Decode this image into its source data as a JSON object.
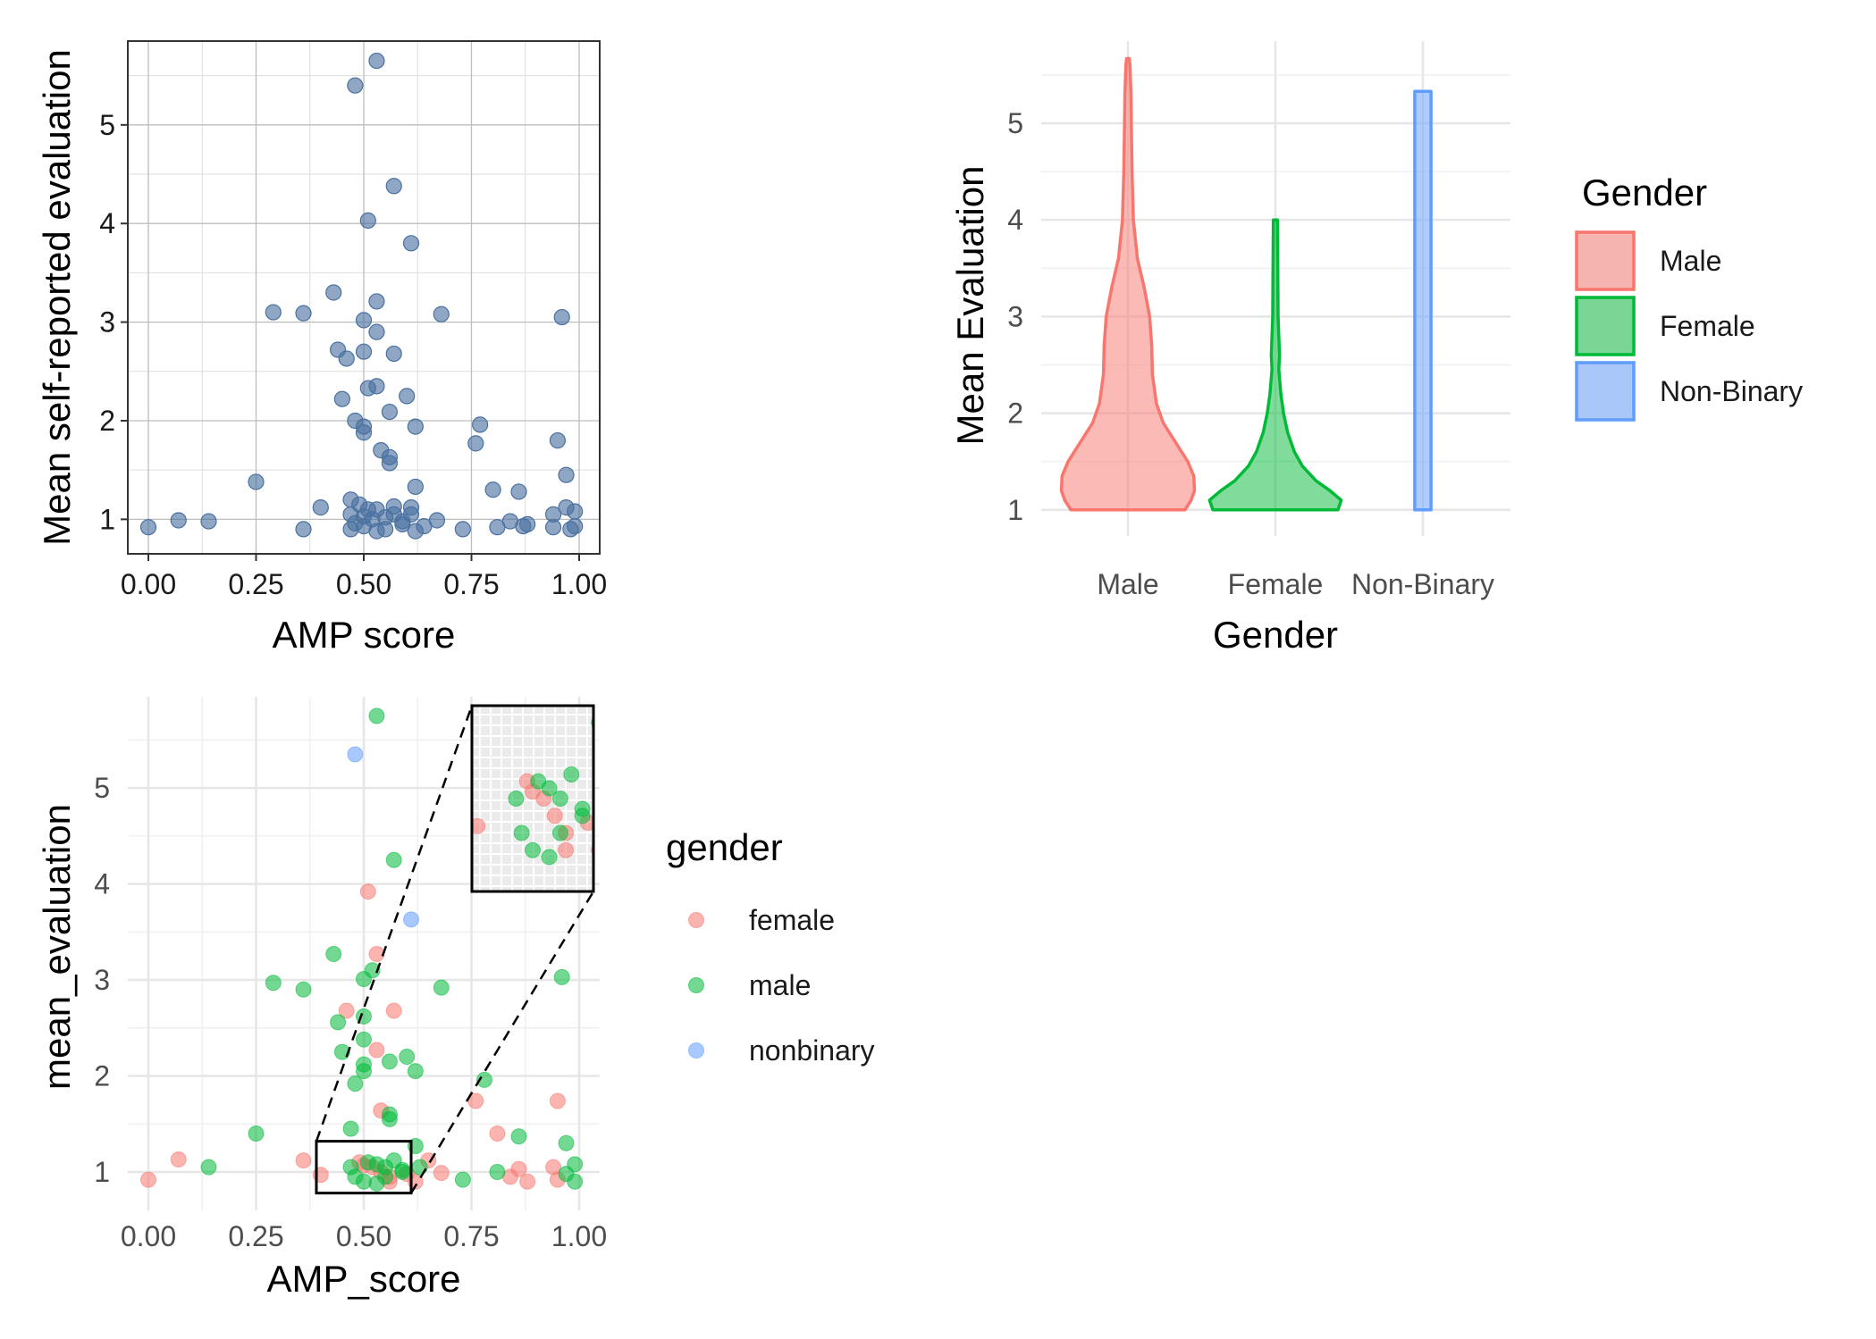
{
  "chart_data": [
    {
      "type": "scatter",
      "panel": "top-left",
      "xlabel": "AMP score",
      "ylabel": "Mean self-reported evaluation",
      "xlim": [
        0,
        1.0
      ],
      "ylim": [
        0.65,
        5.85
      ],
      "x_ticks": [
        "0.00",
        "0.25",
        "0.50",
        "0.75",
        "1.00"
      ],
      "y_ticks": [
        "1",
        "2",
        "3",
        "4",
        "5"
      ],
      "grid": true,
      "point_color": "#4a71a0",
      "points": [
        [
          0.53,
          5.65
        ],
        [
          0.48,
          5.4
        ],
        [
          0.57,
          4.38
        ],
        [
          0.51,
          4.03
        ],
        [
          0.61,
          3.8
        ],
        [
          0.43,
          3.3
        ],
        [
          0.53,
          3.21
        ],
        [
          0.29,
          3.1
        ],
        [
          0.36,
          3.09
        ],
        [
          0.68,
          3.08
        ],
        [
          0.96,
          3.05
        ],
        [
          0.5,
          3.02
        ],
        [
          0.53,
          2.9
        ],
        [
          0.44,
          2.72
        ],
        [
          0.46,
          2.63
        ],
        [
          0.5,
          2.7
        ],
        [
          0.57,
          2.68
        ],
        [
          0.51,
          2.33
        ],
        [
          0.53,
          2.35
        ],
        [
          0.45,
          2.22
        ],
        [
          0.6,
          2.25
        ],
        [
          0.56,
          2.09
        ],
        [
          0.48,
          2.0
        ],
        [
          0.5,
          1.94
        ],
        [
          0.5,
          1.88
        ],
        [
          0.62,
          1.94
        ],
        [
          0.77,
          1.96
        ],
        [
          0.95,
          1.8
        ],
        [
          0.76,
          1.77
        ],
        [
          0.54,
          1.7
        ],
        [
          0.56,
          1.63
        ],
        [
          0.56,
          1.57
        ],
        [
          0.97,
          1.45
        ],
        [
          0.25,
          1.38
        ],
        [
          0.62,
          1.33
        ],
        [
          0.8,
          1.3
        ],
        [
          0.86,
          1.28
        ],
        [
          0.47,
          1.2
        ],
        [
          0.49,
          1.15
        ],
        [
          0.4,
          1.12
        ],
        [
          0.51,
          1.1
        ],
        [
          0.53,
          1.1
        ],
        [
          0.61,
          1.12
        ],
        [
          0.57,
          1.13
        ],
        [
          0.97,
          1.12
        ],
        [
          0.99,
          1.08
        ],
        [
          0.94,
          1.05
        ],
        [
          0.47,
          1.05
        ],
        [
          0.5,
          1.03
        ],
        [
          0.52,
          1.0
        ],
        [
          0.55,
          1.02
        ],
        [
          0.57,
          1.05
        ],
        [
          0.59,
          0.98
        ],
        [
          0.61,
          1.05
        ],
        [
          0.67,
          0.99
        ],
        [
          0.84,
          0.98
        ],
        [
          0.88,
          0.95
        ],
        [
          0.0,
          0.92
        ],
        [
          0.07,
          0.99
        ],
        [
          0.14,
          0.98
        ],
        [
          0.36,
          0.9
        ],
        [
          0.47,
          0.9
        ],
        [
          0.48,
          0.96
        ],
        [
          0.5,
          0.93
        ],
        [
          0.53,
          0.88
        ],
        [
          0.55,
          0.9
        ],
        [
          0.59,
          0.95
        ],
        [
          0.62,
          0.88
        ],
        [
          0.64,
          0.93
        ],
        [
          0.73,
          0.9
        ],
        [
          0.81,
          0.92
        ],
        [
          0.87,
          0.93
        ],
        [
          0.94,
          0.92
        ],
        [
          0.98,
          0.9
        ],
        [
          0.99,
          0.93
        ]
      ]
    },
    {
      "type": "violin",
      "panel": "top-right",
      "xlabel": "Gender",
      "ylabel": "Mean Evaluation",
      "ylim": [
        0.73,
        5.85
      ],
      "y_ticks": [
        "1",
        "2",
        "3",
        "4",
        "5"
      ],
      "categories": [
        "Male",
        "Female",
        "Non-Binary"
      ],
      "legend": {
        "title": "Gender",
        "position": "right",
        "items": [
          "Male",
          "Female",
          "Non-Binary"
        ]
      },
      "colors": {
        "Male": "#f8766d",
        "Female": "#00ba38",
        "Non-Binary": "#619cff"
      },
      "violins": [
        {
          "name": "Male",
          "ymin": 1.0,
          "ymax": 5.67,
          "profile": [
            [
              1.0,
              0.84
            ],
            [
              1.1,
              0.93
            ],
            [
              1.2,
              0.98
            ],
            [
              1.35,
              0.97
            ],
            [
              1.5,
              0.88
            ],
            [
              1.7,
              0.7
            ],
            [
              1.9,
              0.52
            ],
            [
              2.1,
              0.42
            ],
            [
              2.4,
              0.36
            ],
            [
              2.7,
              0.35
            ],
            [
              3.0,
              0.32
            ],
            [
              3.3,
              0.24
            ],
            [
              3.6,
              0.14
            ],
            [
              4.0,
              0.08
            ],
            [
              4.5,
              0.06
            ],
            [
              5.0,
              0.05
            ],
            [
              5.3,
              0.045
            ],
            [
              5.6,
              0.03
            ],
            [
              5.67,
              0.02
            ]
          ]
        },
        {
          "name": "Female",
          "ymin": 1.0,
          "ymax": 4.0,
          "profile": [
            [
              1.0,
              0.92
            ],
            [
              1.1,
              0.97
            ],
            [
              1.2,
              0.8
            ],
            [
              1.3,
              0.6
            ],
            [
              1.45,
              0.4
            ],
            [
              1.6,
              0.28
            ],
            [
              1.8,
              0.18
            ],
            [
              2.0,
              0.12
            ],
            [
              2.2,
              0.08
            ],
            [
              2.45,
              0.05
            ],
            [
              2.6,
              0.06
            ],
            [
              2.8,
              0.05
            ],
            [
              3.0,
              0.04
            ],
            [
              3.5,
              0.035
            ],
            [
              4.0,
              0.03
            ]
          ]
        },
        {
          "name": "Non-Binary",
          "ymin": 1.0,
          "ymax": 5.33,
          "profile": [
            [
              1.0,
              0.12
            ],
            [
              5.33,
              0.12
            ]
          ]
        }
      ]
    },
    {
      "type": "scatter",
      "panel": "bottom-left",
      "xlabel": "AMP_score",
      "ylabel": "mean_evaluation",
      "xlim": [
        0,
        1.0
      ],
      "ylim": [
        0.6,
        5.95
      ],
      "x_ticks": [
        "0.00",
        "0.25",
        "0.50",
        "0.75",
        "1.00"
      ],
      "y_ticks": [
        "1",
        "2",
        "3",
        "4",
        "5"
      ],
      "legend": {
        "title": "gender",
        "position": "right",
        "items": [
          "female",
          "male",
          "nonbinary"
        ]
      },
      "colors": {
        "female": "#f8766d",
        "male": "#00ba38",
        "nonbinary": "#619cff"
      },
      "zoom_box": {
        "x": [
          0.39,
          0.61
        ],
        "y": [
          0.78,
          1.32
        ]
      },
      "series": [
        {
          "name": "female",
          "points": [
            [
              0.51,
              3.92
            ],
            [
              0.53,
              3.27
            ],
            [
              0.46,
              2.68
            ],
            [
              0.57,
              2.68
            ],
            [
              0.53,
              2.27
            ],
            [
              0.54,
              1.64
            ],
            [
              0.76,
              1.74
            ],
            [
              0.95,
              1.74
            ],
            [
              0.81,
              1.4
            ],
            [
              0.36,
              1.12
            ],
            [
              0.07,
              1.13
            ],
            [
              0.0,
              0.92
            ],
            [
              0.4,
              0.97
            ],
            [
              0.49,
              1.1
            ],
            [
              0.5,
              1.07
            ],
            [
              0.52,
              1.05
            ],
            [
              0.54,
              1.0
            ],
            [
              0.56,
              0.95
            ],
            [
              0.6,
              0.98
            ],
            [
              0.65,
              1.12
            ],
            [
              0.68,
              0.99
            ],
            [
              0.84,
              0.95
            ],
            [
              0.86,
              1.03
            ],
            [
              0.88,
              0.9
            ],
            [
              0.94,
              1.05
            ],
            [
              0.95,
              0.92
            ],
            [
              0.56,
              0.9
            ],
            [
              0.62,
              0.9
            ]
          ]
        },
        {
          "name": "male",
          "points": [
            [
              0.53,
              5.75
            ],
            [
              0.57,
              4.25
            ],
            [
              0.43,
              3.27
            ],
            [
              0.52,
              3.1
            ],
            [
              0.5,
              3.01
            ],
            [
              0.29,
              2.97
            ],
            [
              0.36,
              2.9
            ],
            [
              0.68,
              2.92
            ],
            [
              0.96,
              3.03
            ],
            [
              0.5,
              2.62
            ],
            [
              0.44,
              2.56
            ],
            [
              0.5,
              2.38
            ],
            [
              0.45,
              2.25
            ],
            [
              0.6,
              2.2
            ],
            [
              0.56,
              2.15
            ],
            [
              0.5,
              2.12
            ],
            [
              0.5,
              2.05
            ],
            [
              0.62,
              2.05
            ],
            [
              0.78,
              1.96
            ],
            [
              0.48,
              1.92
            ],
            [
              0.56,
              1.6
            ],
            [
              0.56,
              1.55
            ],
            [
              0.97,
              1.3
            ],
            [
              0.25,
              1.4
            ],
            [
              0.47,
              1.45
            ],
            [
              0.62,
              1.27
            ],
            [
              0.86,
              1.37
            ],
            [
              0.99,
              1.08
            ],
            [
              0.14,
              1.05
            ],
            [
              0.47,
              1.05
            ],
            [
              0.51,
              1.1
            ],
            [
              0.53,
              1.08
            ],
            [
              0.55,
              1.05
            ],
            [
              0.57,
              1.12
            ],
            [
              0.59,
              1.0
            ],
            [
              0.63,
              1.05
            ],
            [
              0.73,
              0.92
            ],
            [
              0.81,
              1.0
            ],
            [
              0.97,
              0.98
            ],
            [
              0.99,
              0.9
            ],
            [
              0.48,
              0.95
            ],
            [
              0.5,
              0.9
            ],
            [
              0.53,
              0.88
            ],
            [
              0.55,
              0.95
            ],
            [
              0.59,
              1.02
            ]
          ]
        },
        {
          "name": "nonbinary",
          "points": [
            [
              0.48,
              5.35
            ],
            [
              0.61,
              3.63
            ]
          ]
        }
      ]
    }
  ]
}
